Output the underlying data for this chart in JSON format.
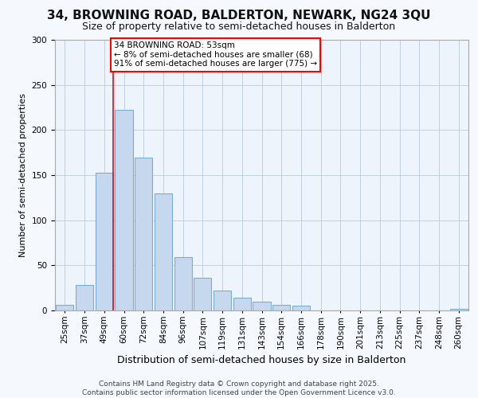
{
  "title1": "34, BROWNING ROAD, BALDERTON, NEWARK, NG24 3QU",
  "title2": "Size of property relative to semi-detached houses in Balderton",
  "xlabel": "Distribution of semi-detached houses by size in Balderton",
  "ylabel": "Number of semi-detached properties",
  "categories": [
    "25sqm",
    "37sqm",
    "49sqm",
    "60sqm",
    "72sqm",
    "84sqm",
    "96sqm",
    "107sqm",
    "119sqm",
    "131sqm",
    "143sqm",
    "154sqm",
    "166sqm",
    "178sqm",
    "190sqm",
    "201sqm",
    "213sqm",
    "225sqm",
    "237sqm",
    "248sqm",
    "260sqm"
  ],
  "values": [
    6,
    28,
    153,
    222,
    169,
    130,
    59,
    36,
    22,
    14,
    10,
    6,
    5,
    0,
    0,
    0,
    0,
    0,
    0,
    0,
    2
  ],
  "bar_color": "#c5d8ed",
  "bar_edge_color": "#7aafd4",
  "red_line_bin_index": 2,
  "annotation_line0": "34 BROWNING ROAD: 53sqm",
  "annotation_line1": "← 8% of semi-detached houses are smaller (68)",
  "annotation_line2": "91% of semi-detached houses are larger (775) →",
  "footer1": "Contains HM Land Registry data © Crown copyright and database right 2025.",
  "footer2": "Contains public sector information licensed under the Open Government Licence v3.0.",
  "ylim_max": 300,
  "yticks": [
    0,
    50,
    100,
    150,
    200,
    250,
    300
  ],
  "plot_bg_color": "#eef4fb",
  "fig_bg_color": "#f5f8fc",
  "grid_color": "#c0cfe0",
  "title1_fontsize": 11,
  "title2_fontsize": 9,
  "xlabel_fontsize": 9,
  "ylabel_fontsize": 8,
  "tick_fontsize": 7.5,
  "footer_fontsize": 6.5
}
